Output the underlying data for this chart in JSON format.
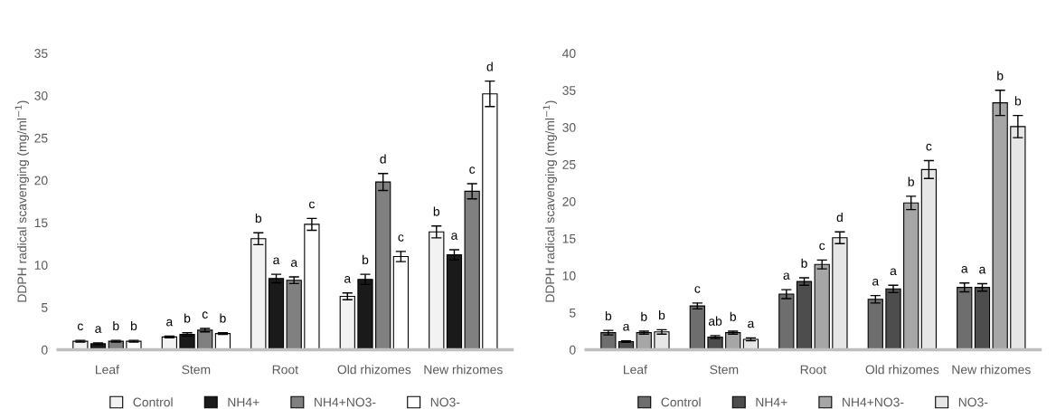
{
  "chart_data": [
    {
      "type": "bar",
      "ylabel": "DDPH radical scavenging (mg/ml$^{−1}$)",
      "categories": [
        "Leaf",
        "Stem",
        "Root",
        "Old rhizomes",
        "New rhizomes"
      ],
      "ylim": [
        0,
        35
      ],
      "yticks": [
        0,
        5,
        10,
        15,
        20,
        25,
        30,
        35
      ],
      "grid": false,
      "legend": "bottom",
      "series": [
        {
          "name": "Control",
          "color": "#f2f2f2",
          "values": [
            1.0,
            1.5,
            13.1,
            6.3,
            13.9
          ],
          "errors": [
            0.1,
            0.1,
            0.7,
            0.4,
            0.7
          ],
          "value_labels": [
            "c",
            "a",
            "b",
            "a",
            "b"
          ]
        },
        {
          "name": "NH4+",
          "color": "#1a1a1a",
          "values": [
            0.7,
            1.8,
            8.4,
            8.3,
            11.2
          ],
          "errors": [
            0.1,
            0.2,
            0.5,
            0.6,
            0.6
          ],
          "value_labels": [
            "a",
            "b",
            "a",
            "b",
            "a"
          ]
        },
        {
          "name": "NH4+NO3-",
          "color": "#808080",
          "values": [
            1.0,
            2.3,
            8.2,
            19.8,
            18.7
          ],
          "errors": [
            0.1,
            0.2,
            0.4,
            1.0,
            0.9
          ],
          "value_labels": [
            "b",
            "c",
            "a",
            "d",
            "c"
          ]
        },
        {
          "name": "NO3-",
          "color": "#ffffff",
          "values": [
            1.0,
            1.9,
            14.8,
            11.0,
            30.2
          ],
          "errors": [
            0.1,
            0.1,
            0.7,
            0.6,
            1.5
          ],
          "value_labels": [
            "b",
            "b",
            "c",
            "c",
            "d"
          ]
        }
      ]
    },
    {
      "type": "bar",
      "ylabel": "DDPH radical scavenging (mg/ml$^{−1}$)",
      "categories": [
        "Leaf",
        "Stem",
        "Root",
        "Old rhizomes",
        "New rhizomes"
      ],
      "ylim": [
        0,
        40
      ],
      "yticks": [
        0,
        5,
        10,
        15,
        20,
        25,
        30,
        35,
        40
      ],
      "grid": false,
      "legend": "bottom",
      "series": [
        {
          "name": "Control",
          "color": "#6e6e6e",
          "values": [
            2.3,
            5.9,
            7.5,
            6.8,
            8.4
          ],
          "errors": [
            0.3,
            0.4,
            0.6,
            0.5,
            0.6
          ],
          "value_labels": [
            "b",
            "c",
            "a",
            "a",
            "a"
          ]
        },
        {
          "name": "NH4+",
          "color": "#4d4d4d",
          "values": [
            1.1,
            1.7,
            9.2,
            8.2,
            8.4
          ],
          "errors": [
            0.1,
            0.2,
            0.5,
            0.5,
            0.5
          ],
          "value_labels": [
            "a",
            "ab",
            "b",
            "a",
            "a"
          ]
        },
        {
          "name": "NH4+NO3-",
          "color": "#a6a6a6",
          "values": [
            2.3,
            2.3,
            11.5,
            19.8,
            33.3
          ],
          "errors": [
            0.2,
            0.2,
            0.6,
            0.9,
            1.7
          ],
          "value_labels": [
            "b",
            "b",
            "c",
            "b",
            "b"
          ]
        },
        {
          "name": "NO3-",
          "color": "#e6e6e6",
          "values": [
            2.4,
            1.4,
            15.1,
            24.3,
            30.1
          ],
          "errors": [
            0.3,
            0.2,
            0.8,
            1.2,
            1.5
          ],
          "value_labels": [
            "b",
            "a",
            "d",
            "c",
            "b"
          ]
        }
      ]
    }
  ]
}
